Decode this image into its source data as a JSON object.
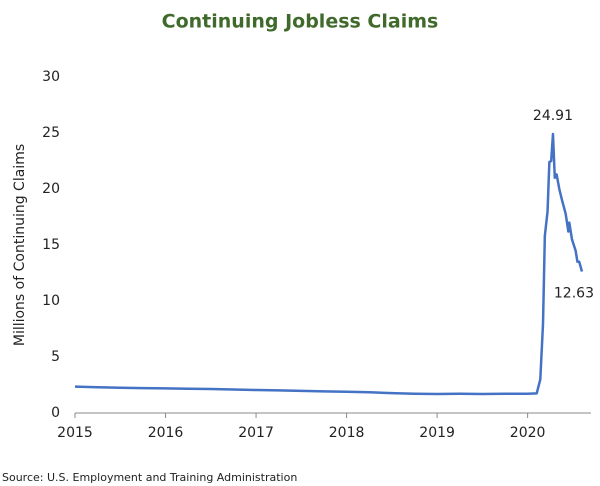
{
  "chart_data": {
    "type": "line",
    "title": "Continuing Jobless Claims",
    "y_label": "Millions of Continuing Claims",
    "source": "Source: U.S. Employment and Training Administration",
    "x": [
      2015.0,
      2015.25,
      2015.5,
      2015.75,
      2016.0,
      2016.25,
      2016.5,
      2016.75,
      2017.0,
      2017.25,
      2017.5,
      2017.75,
      2018.0,
      2018.25,
      2018.5,
      2018.75,
      2019.0,
      2019.25,
      2019.5,
      2019.75,
      2020.0,
      2020.1,
      2020.14,
      2020.17,
      2020.19,
      2020.22,
      2020.24,
      2020.26,
      2020.28,
      2020.3,
      2020.32,
      2020.35,
      2020.38,
      2020.42,
      2020.45,
      2020.46,
      2020.49,
      2020.53,
      2020.55,
      2020.57,
      2020.6
    ],
    "series": [
      {
        "name": "Continuing Claims",
        "color": "#4472c4",
        "values": [
          2.35,
          2.3,
          2.25,
          2.22,
          2.2,
          2.17,
          2.14,
          2.1,
          2.05,
          2.02,
          1.97,
          1.93,
          1.9,
          1.85,
          1.78,
          1.72,
          1.7,
          1.72,
          1.7,
          1.72,
          1.72,
          1.75,
          3.0,
          8.0,
          15.8,
          18.0,
          22.4,
          22.5,
          24.91,
          21.0,
          21.3,
          20.0,
          19.0,
          17.8,
          16.2,
          17.0,
          15.5,
          14.5,
          13.5,
          13.5,
          12.63
        ]
      }
    ],
    "annotations": [
      "24.91",
      "12.63"
    ],
    "xlim": [
      2015,
      2020.7
    ],
    "xticks": [
      2015,
      2016,
      2017,
      2018,
      2019,
      2020
    ],
    "ylim": [
      0,
      30
    ],
    "yticks": [
      0,
      5,
      10,
      15,
      20,
      25,
      30
    ],
    "grid": false
  }
}
